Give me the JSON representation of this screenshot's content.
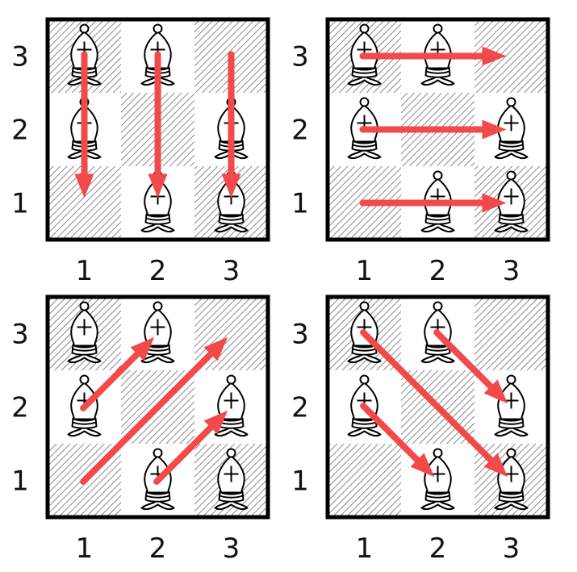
{
  "row_labels": [
    "3",
    "2",
    "1"
  ],
  "col_labels": [
    "1",
    "2",
    "3"
  ],
  "colors": {
    "arrow": "#f24a4a",
    "border": "#000000",
    "hatch": "#666666"
  },
  "piece_icon": "white-bishop-icon",
  "panels": [
    {
      "name": "panel-top-left",
      "bishops": [
        [
          1,
          3
        ],
        [
          2,
          3
        ],
        [
          1,
          2
        ],
        [
          3,
          2
        ],
        [
          2,
          1
        ],
        [
          3,
          1
        ]
      ],
      "arrows": [
        [
          [
            1,
            3
          ],
          [
            1,
            1
          ]
        ],
        [
          [
            2,
            3
          ],
          [
            2,
            1
          ]
        ],
        [
          [
            3,
            3
          ],
          [
            3,
            1
          ]
        ]
      ]
    },
    {
      "name": "panel-top-right",
      "bishops": [
        [
          1,
          3
        ],
        [
          2,
          3
        ],
        [
          1,
          2
        ],
        [
          3,
          2
        ],
        [
          2,
          1
        ],
        [
          3,
          1
        ]
      ],
      "arrows": [
        [
          [
            1,
            3
          ],
          [
            3,
            3
          ]
        ],
        [
          [
            1,
            2
          ],
          [
            3,
            2
          ]
        ],
        [
          [
            1,
            1
          ],
          [
            3,
            1
          ]
        ]
      ]
    },
    {
      "name": "panel-bottom-left",
      "bishops": [
        [
          1,
          3
        ],
        [
          2,
          3
        ],
        [
          1,
          2
        ],
        [
          3,
          2
        ],
        [
          2,
          1
        ],
        [
          3,
          1
        ]
      ],
      "arrows": [
        [
          [
            1,
            2
          ],
          [
            2,
            3
          ]
        ],
        [
          [
            1,
            1
          ],
          [
            3,
            3
          ]
        ],
        [
          [
            2,
            1
          ],
          [
            3,
            2
          ]
        ]
      ]
    },
    {
      "name": "panel-bottom-right",
      "bishops": [
        [
          1,
          3
        ],
        [
          2,
          3
        ],
        [
          1,
          2
        ],
        [
          3,
          2
        ],
        [
          2,
          1
        ],
        [
          3,
          1
        ]
      ],
      "arrows": [
        [
          [
            1,
            3
          ],
          [
            3,
            1
          ]
        ],
        [
          [
            2,
            3
          ],
          [
            3,
            2
          ]
        ],
        [
          [
            1,
            2
          ],
          [
            2,
            1
          ]
        ]
      ]
    }
  ]
}
